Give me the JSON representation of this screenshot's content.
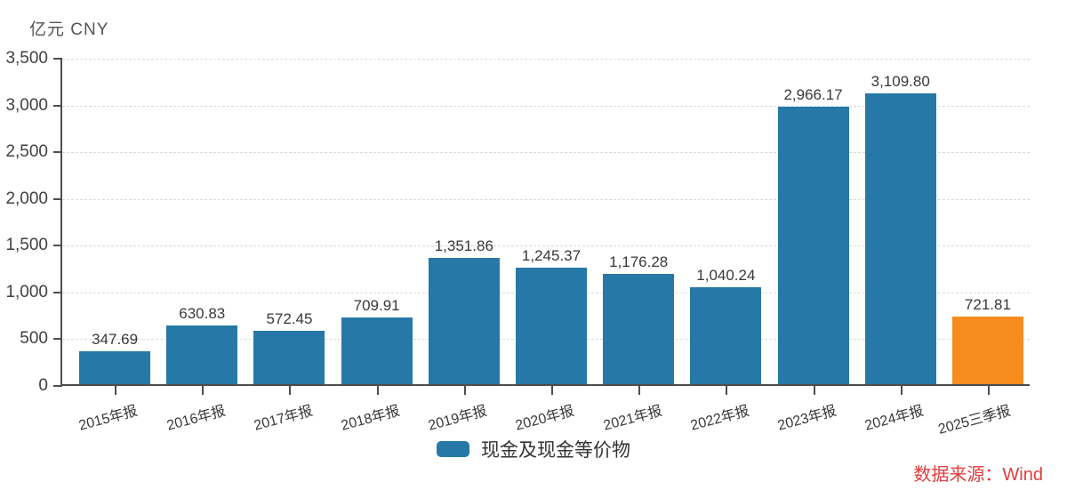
{
  "header": {
    "unit_label": "亿元  CNY"
  },
  "chart_data": {
    "type": "bar",
    "title": "",
    "unit": "亿元 CNY",
    "categories": [
      "2015年报",
      "2016年报",
      "2017年报",
      "2018年报",
      "2019年报",
      "2020年报",
      "2021年报",
      "2022年报",
      "2023年报",
      "2024年报",
      "2025三季报"
    ],
    "values": [
      347.69,
      630.83,
      572.45,
      709.91,
      1351.86,
      1245.37,
      1176.28,
      1040.24,
      2966.17,
      3109.8,
      721.81
    ],
    "value_labels": [
      "347.69",
      "630.83",
      "572.45",
      "709.91",
      "1,351.86",
      "1,245.37",
      "1,176.28",
      "1,040.24",
      "2,966.17",
      "3,109.80",
      "721.81"
    ],
    "series_name": "现金及现金等价物",
    "bar_color_default": "#2679a6",
    "bar_color_highlight": "#f68b1e",
    "highlight_index": 10,
    "ylim": [
      0,
      3500
    ],
    "y_ticks": [
      {
        "value": 0,
        "label": "0"
      },
      {
        "value": 500,
        "label": "500"
      },
      {
        "value": 1000,
        "label": "1,000"
      },
      {
        "value": 1500,
        "label": "1,500"
      },
      {
        "value": 2000,
        "label": "2,000"
      },
      {
        "value": 2500,
        "label": "2,500"
      },
      {
        "value": 3000,
        "label": "3,000"
      },
      {
        "value": 3500,
        "label": "3,500"
      }
    ],
    "grid": "dashed-horizontal",
    "legend_position": "bottom-center",
    "legend": [
      {
        "label": "现金及现金等价物",
        "color": "#2679a6"
      }
    ]
  },
  "footer": {
    "source_label": "数据来源：Wind",
    "source_color": "#e23d3d"
  }
}
